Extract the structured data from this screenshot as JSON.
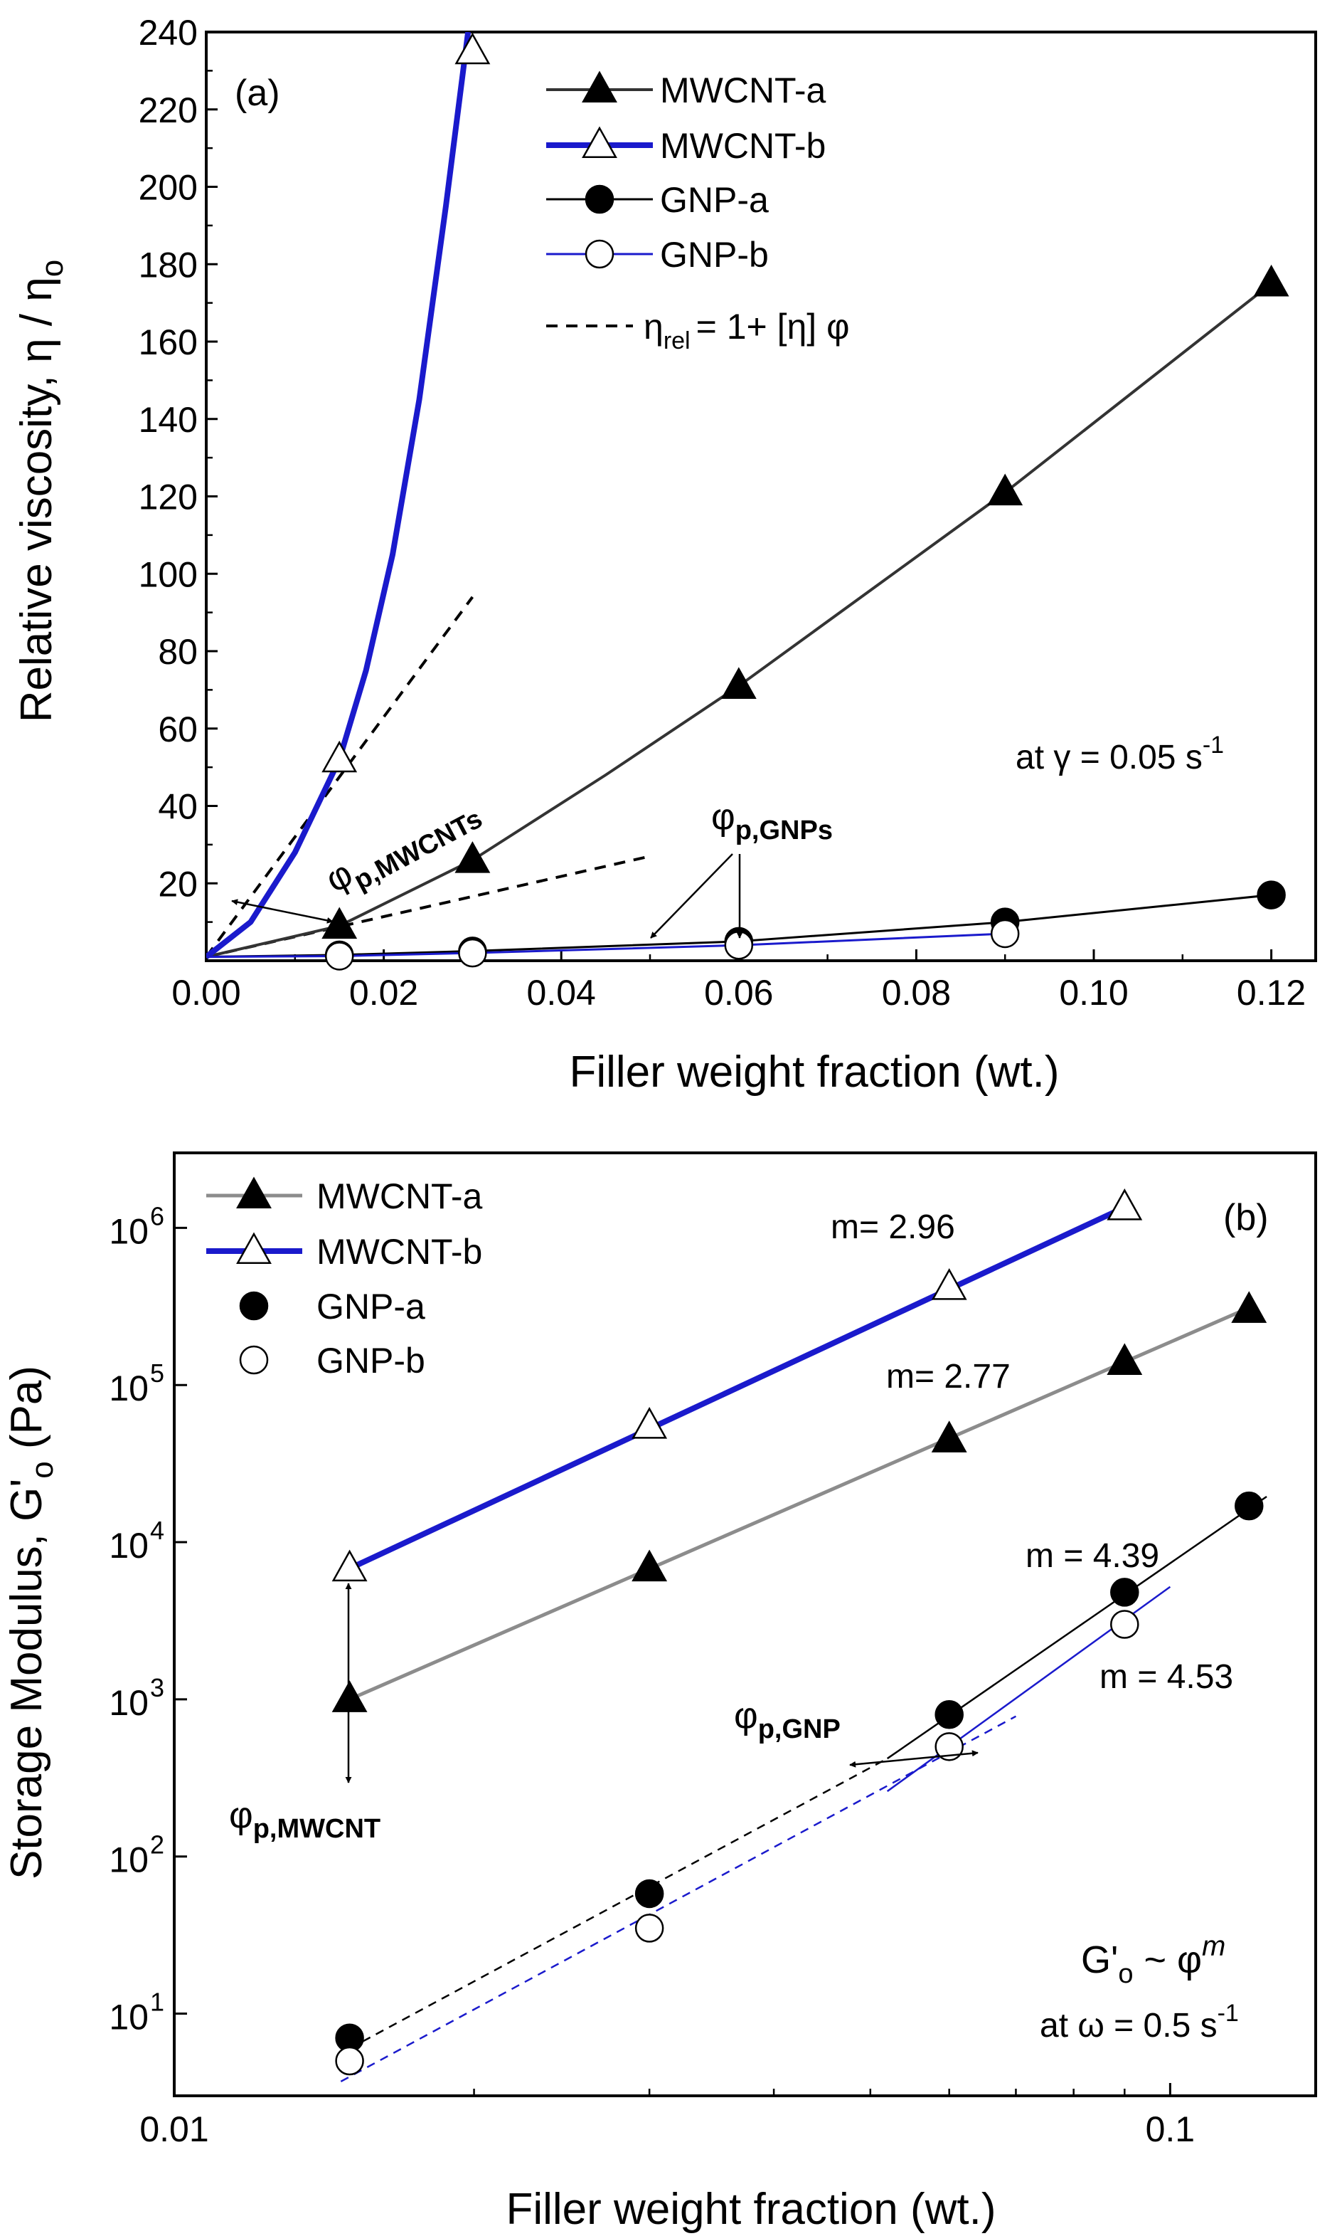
{
  "figure": {
    "panels": [
      "(a)",
      "(b)"
    ]
  },
  "colors": {
    "blue": "#1a1acc",
    "dark_gray": "#333333",
    "light_gray": "#8c8c8c",
    "black": "#000000"
  },
  "chart_data": [
    {
      "type": "line",
      "panel_label": "(a)",
      "xlabel": "Filler weight fraction (wt.)",
      "ylabel": "Relative viscosity, η / η",
      "ylabel_sub": "o",
      "xlim": [
        0,
        0.125
      ],
      "ylim": [
        0,
        240
      ],
      "xticks": [
        0.0,
        0.02,
        0.04,
        0.06,
        0.08,
        0.1,
        0.12
      ],
      "xtick_labels": [
        "0.00",
        "0.02",
        "0.04",
        "0.06",
        "0.08",
        "0.10",
        "0.12"
      ],
      "yticks": [
        20,
        40,
        60,
        80,
        100,
        120,
        140,
        160,
        180,
        200,
        220,
        240
      ],
      "ytick_labels": [
        "20",
        "40",
        "60",
        "80",
        "100",
        "120",
        "140",
        "160",
        "180",
        "200",
        "220",
        "240"
      ],
      "series": [
        {
          "name": "MWCNT-a",
          "marker": "triangle-filled",
          "x": [
            0.015,
            0.03,
            0.06,
            0.09,
            0.12
          ],
          "y": [
            9,
            26,
            71,
            121,
            175
          ]
        },
        {
          "name": "MWCNT-b",
          "marker": "triangle-open",
          "x": [
            0.015,
            0.03
          ],
          "y": [
            52,
            235
          ]
        },
        {
          "name": "GNP-a",
          "marker": "circle-filled",
          "x": [
            0.015,
            0.03,
            0.06,
            0.09,
            0.12
          ],
          "y": [
            1.5,
            2.5,
            5,
            10,
            17
          ]
        },
        {
          "name": "GNP-b",
          "marker": "circle-open",
          "x": [
            0.015,
            0.03,
            0.06,
            0.09
          ],
          "y": [
            1.2,
            2,
            4,
            7
          ]
        }
      ],
      "fit_curves": [
        {
          "name": "MWCNT-a",
          "x": [
            0,
            0.015,
            0.03,
            0.045,
            0.06,
            0.075,
            0.09,
            0.105,
            0.12
          ],
          "y": [
            1,
            9,
            26,
            48,
            71,
            96,
            121,
            148,
            175
          ]
        },
        {
          "name": "MWCNT-b",
          "x": [
            0,
            0.005,
            0.01,
            0.015,
            0.018,
            0.021,
            0.024,
            0.027,
            0.0295
          ],
          "y": [
            1,
            10,
            28,
            52,
            75,
            105,
            145,
            195,
            240
          ]
        },
        {
          "name": "GNP-a",
          "x": [
            0,
            0.015,
            0.03,
            0.06,
            0.09,
            0.12
          ],
          "y": [
            1,
            1.5,
            2.5,
            5,
            10,
            17
          ]
        },
        {
          "name": "GNP-b",
          "x": [
            0,
            0.015,
            0.03,
            0.06,
            0.09
          ],
          "y": [
            1,
            1.2,
            2,
            4,
            7
          ]
        }
      ],
      "dashed_lines": [
        {
          "name": "MWCNT linear",
          "x": [
            0,
            0.03
          ],
          "y": [
            1,
            94
          ]
        },
        {
          "name": "GNP linear",
          "x": [
            0,
            0.05
          ],
          "y": [
            1,
            27
          ]
        }
      ],
      "legend": [
        {
          "label": "MWCNT-a",
          "marker": "triangle-filled"
        },
        {
          "label": "MWCNT-b",
          "marker": "triangle-open"
        },
        {
          "label": "GNP-a",
          "marker": "circle-filled"
        },
        {
          "label": "GNP-b",
          "marker": "circle-open"
        },
        {
          "label_main": "η",
          "label_sub": "rel",
          "label_rest": "= 1+ [η] φ",
          "marker": "dashed"
        }
      ],
      "annotations": {
        "condition": "at γ = 0.05 s",
        "condition_exp": "-1",
        "phi_mwcnt": "φ",
        "phi_mwcnt_sub": "p,MWCNTs",
        "phi_gnp": "φ",
        "phi_gnp_sub": "p,GNPs"
      }
    },
    {
      "type": "line",
      "panel_label": "(b)",
      "xscale": "log",
      "yscale": "log",
      "xlabel": "Filler weight fraction (wt.)",
      "ylabel": "Storage Modulus, G'",
      "ylabel_sub": "o",
      "ylabel_rest": " (Pa)",
      "xlim": [
        0.01,
        0.14
      ],
      "ylim": [
        3,
        3000000
      ],
      "xticks": [
        0.01,
        0.1
      ],
      "xtick_labels": [
        "0.01",
        "0.1"
      ],
      "yticks": [
        10,
        100,
        1000,
        10000,
        100000,
        1000000
      ],
      "ytick_exps": [
        "1",
        "2",
        "3",
        "4",
        "5",
        "6"
      ],
      "ytick_base": "10",
      "series": [
        {
          "name": "MWCNT-a",
          "marker": "triangle-filled",
          "x": [
            0.015,
            0.03,
            0.06,
            0.09,
            0.12
          ],
          "y": [
            1000,
            6800,
            45000,
            140000,
            300000
          ]
        },
        {
          "name": "MWCNT-b",
          "marker": "triangle-open",
          "x": [
            0.015,
            0.03,
            0.06,
            0.09
          ],
          "y": [
            6800,
            55000,
            420000,
            1350000
          ]
        },
        {
          "name": "GNP-a",
          "marker": "circle-filled",
          "x": [
            0.015,
            0.03,
            0.06,
            0.09,
            0.12
          ],
          "y": [
            7,
            58,
            800,
            4800,
            17000
          ]
        },
        {
          "name": "GNP-b",
          "marker": "circle-open",
          "x": [
            0.015,
            0.03,
            0.06,
            0.09
          ],
          "y": [
            5,
            35,
            500,
            3000
          ]
        }
      ],
      "fit_lines": [
        {
          "name": "MWCNT-a fit",
          "x": [
            0.015,
            0.12
          ],
          "y": [
            1000,
            310000
          ],
          "style": "solid"
        },
        {
          "name": "MWCNT-b fit",
          "x": [
            0.015,
            0.09
          ],
          "y": [
            6800,
            1350000
          ],
          "style": "solid"
        },
        {
          "name": "GNP-a fit",
          "x": [
            0.052,
            0.125
          ],
          "y": [
            420,
            19500
          ],
          "style": "solid"
        },
        {
          "name": "GNP-b fit",
          "x": [
            0.052,
            0.1
          ],
          "y": [
            260,
            5200
          ],
          "style": "solid"
        },
        {
          "name": "GNP-a extrapolation",
          "x": [
            0.015,
            0.052
          ],
          "y": [
            6,
            420
          ],
          "style": "dashed"
        },
        {
          "name": "GNP-b extrapolation",
          "x": [
            0.0147,
            0.07
          ],
          "y": [
            3.7,
            780
          ],
          "style": "dashed"
        }
      ],
      "slope_labels": [
        "m= 2.96",
        "m= 2.77",
        "m = 4.39",
        "m = 4.53"
      ],
      "legend": [
        {
          "label": "MWCNT-a",
          "marker": "triangle-filled"
        },
        {
          "label": "MWCNT-b",
          "marker": "triangle-open"
        },
        {
          "label": "GNP-a",
          "marker": "circle-filled"
        },
        {
          "label": "GNP-b",
          "marker": "circle-open"
        }
      ],
      "annotations": {
        "power_law_lhs": "G'",
        "power_law_sub": "o",
        "power_law_rhs": " ~ φ",
        "power_law_exp": "m",
        "condition": "at ω = 0.5 s",
        "condition_exp": "-1",
        "phi_mwcnt": "φ",
        "phi_mwcnt_sub": "p,MWCNT",
        "phi_gnp": "φ",
        "phi_gnp_sub": "p,GNP"
      }
    }
  ]
}
